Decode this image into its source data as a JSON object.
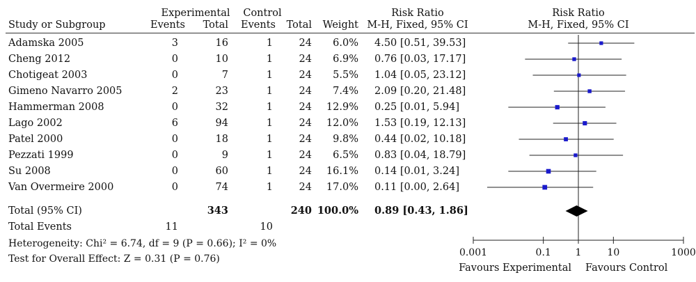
{
  "header": {
    "col_study": "Study or Subgroup",
    "group_experimental": "Experimental",
    "group_control": "Control",
    "col_events": "Events",
    "col_total": "Total",
    "col_weight": "Weight",
    "rr_title": "Risk Ratio",
    "rr_method": "M-H, Fixed, 95% CI",
    "plot_title": "Risk Ratio",
    "plot_method": "M-H, Fixed, 95% CI"
  },
  "summary": {
    "total_label": "Total (95% CI)",
    "exp_total": "343",
    "ctrl_total": "240",
    "weight": "100.0%",
    "ci_text": "0.89 [0.43, 1.86]",
    "events_label": "Total Events",
    "exp_events": "11",
    "ctrl_events": "10",
    "heterogeneity": "Heterogeneity: Chi² = 6.74, df = 9 (P = 0.66); I² = 0%",
    "overall_effect": "Test for Overall Effect: Z = 0.31 (P = 0.76)"
  },
  "axis": {
    "ticks": [
      "0.001",
      "0.1",
      "1",
      "10",
      "1000"
    ],
    "favours_left": "Favours Experimental",
    "favours_right": "Favours Control"
  },
  "chart_data": {
    "type": "forest",
    "x_scale": "log",
    "xlim": [
      0.001,
      1000
    ],
    "ticks": [
      0.001,
      0.1,
      1,
      10,
      1000
    ],
    "reference_line": 1,
    "studies": [
      {
        "name": "Adamska 2005",
        "exp_events": "3",
        "exp_total": "16",
        "ctrl_events": "1",
        "ctrl_total": "24",
        "weight": "6.0%",
        "ci_text": "4.50 [0.51, 39.53]",
        "rr": 4.5,
        "lo": 0.51,
        "hi": 39.53,
        "w": 6.0
      },
      {
        "name": "Cheng 2012",
        "exp_events": "0",
        "exp_total": "10",
        "ctrl_events": "1",
        "ctrl_total": "24",
        "weight": "6.9%",
        "ci_text": "0.76 [0.03, 17.17]",
        "rr": 0.76,
        "lo": 0.03,
        "hi": 17.17,
        "w": 6.9
      },
      {
        "name": "Chotigeat 2003",
        "exp_events": "0",
        "exp_total": "7",
        "ctrl_events": "1",
        "ctrl_total": "24",
        "weight": "5.5%",
        "ci_text": "1.04 [0.05, 23.12]",
        "rr": 1.04,
        "lo": 0.05,
        "hi": 23.12,
        "w": 5.5
      },
      {
        "name": "Gimeno Navarro 2005",
        "exp_events": "2",
        "exp_total": "23",
        "ctrl_events": "1",
        "ctrl_total": "24",
        "weight": "7.4%",
        "ci_text": "2.09 [0.20, 21.48]",
        "rr": 2.09,
        "lo": 0.2,
        "hi": 21.48,
        "w": 7.4
      },
      {
        "name": "Hammerman 2008",
        "exp_events": "0",
        "exp_total": "32",
        "ctrl_events": "1",
        "ctrl_total": "24",
        "weight": "12.9%",
        "ci_text": "0.25 [0.01, 5.94]",
        "rr": 0.25,
        "lo": 0.01,
        "hi": 5.94,
        "w": 12.9
      },
      {
        "name": "Lago 2002",
        "exp_events": "6",
        "exp_total": "94",
        "ctrl_events": "1",
        "ctrl_total": "24",
        "weight": "12.0%",
        "ci_text": "1.53 [0.19, 12.13]",
        "rr": 1.53,
        "lo": 0.19,
        "hi": 12.13,
        "w": 12.0
      },
      {
        "name": "Patel 2000",
        "exp_events": "0",
        "exp_total": "18",
        "ctrl_events": "1",
        "ctrl_total": "24",
        "weight": "9.8%",
        "ci_text": "0.44 [0.02, 10.18]",
        "rr": 0.44,
        "lo": 0.02,
        "hi": 10.18,
        "w": 9.8
      },
      {
        "name": "Pezzati 1999",
        "exp_events": "0",
        "exp_total": "9",
        "ctrl_events": "1",
        "ctrl_total": "24",
        "weight": "6.5%",
        "ci_text": "0.83 [0.04, 18.79]",
        "rr": 0.83,
        "lo": 0.04,
        "hi": 18.79,
        "w": 6.5
      },
      {
        "name": "Su 2008",
        "exp_events": "0",
        "exp_total": "60",
        "ctrl_events": "1",
        "ctrl_total": "24",
        "weight": "16.1%",
        "ci_text": "0.14 [0.01, 3.24]",
        "rr": 0.14,
        "lo": 0.01,
        "hi": 3.24,
        "w": 16.1
      },
      {
        "name": "Van Overmeire 2000",
        "exp_events": "0",
        "exp_total": "74",
        "ctrl_events": "1",
        "ctrl_total": "24",
        "weight": "17.0%",
        "ci_text": "0.11 [0.00, 2.64]",
        "rr": 0.11,
        "lo": 0.0,
        "hi": 2.64,
        "w": 17.0
      }
    ],
    "pooled": {
      "rr": 0.89,
      "lo": 0.43,
      "hi": 1.86
    }
  }
}
